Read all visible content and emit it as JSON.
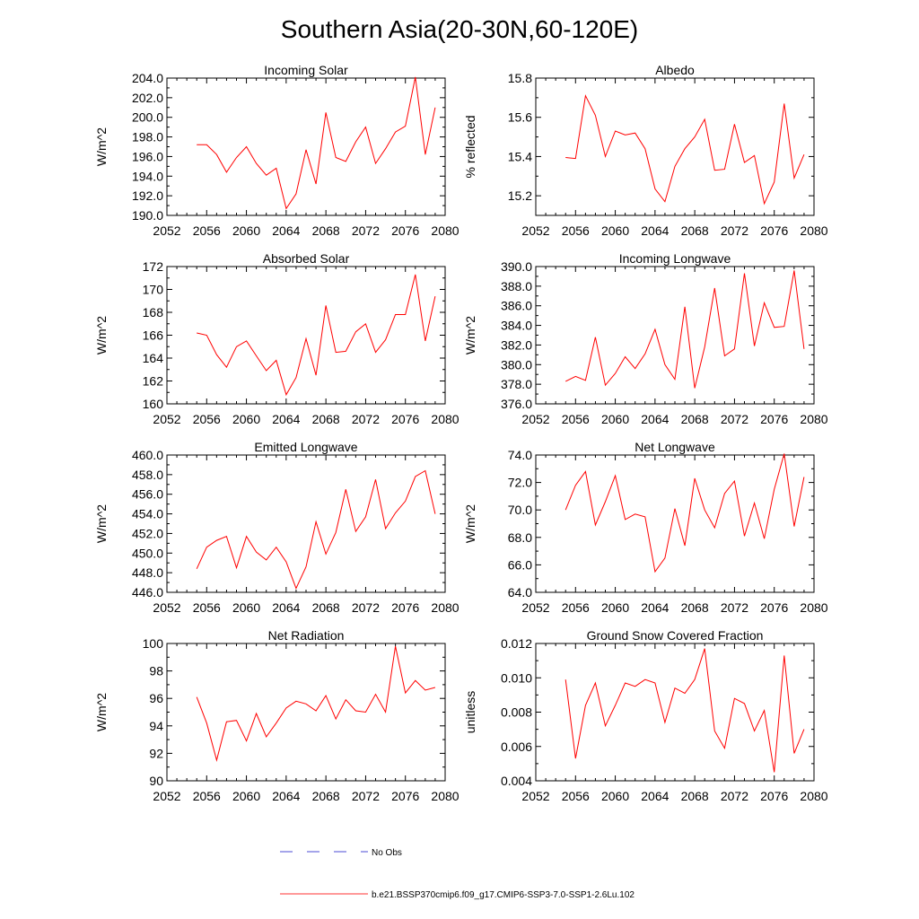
{
  "page_title": "Southern Asia(20-30N,60-120E)",
  "legend": {
    "entries": [
      {
        "label": "No Obs",
        "color": "#4b4bd6",
        "style": "dashed"
      },
      {
        "label": "b.e21.BSSP370cmip6.f09_g17.CMIP6-SSP3-7.0-SSP1-2.6Lu.102",
        "color": "#ff3333",
        "style": "solid"
      }
    ]
  },
  "chart_data": [
    {
      "type": "line",
      "title": "Incoming Solar",
      "ylabel": "W/m^2",
      "xlim": [
        2052,
        2080
      ],
      "xticks": [
        "2052",
        "2056",
        "2060",
        "2064",
        "2068",
        "2072",
        "2076",
        "2080"
      ],
      "ylim": [
        190,
        204
      ],
      "yticks": [
        "190.0",
        "192.0",
        "194.0",
        "196.0",
        "198.0",
        "200.0",
        "202.0",
        "204.0"
      ],
      "series": [
        {
          "color": "#ff0000",
          "x": [
            2055,
            2056,
            2057,
            2058,
            2059,
            2060,
            2061,
            2062,
            2063,
            2064,
            2065,
            2066,
            2067,
            2068,
            2069,
            2070,
            2071,
            2072,
            2073,
            2074,
            2075,
            2076,
            2077,
            2078,
            2079
          ],
          "values": [
            197.2,
            197.2,
            196.2,
            194.4,
            195.9,
            197.0,
            195.3,
            194.1,
            194.8,
            190.7,
            192.2,
            196.7,
            193.2,
            200.5,
            195.9,
            195.5,
            197.5,
            199.0,
            195.3,
            196.8,
            198.5,
            199.1,
            204.1,
            196.2,
            201.0
          ]
        }
      ]
    },
    {
      "type": "line",
      "title": "Albedo",
      "ylabel": "% reflected",
      "xlim": [
        2052,
        2080
      ],
      "xticks": [
        "2052",
        "2056",
        "2060",
        "2064",
        "2068",
        "2072",
        "2076",
        "2080"
      ],
      "ylim": [
        15.1,
        15.8
      ],
      "yticks": [
        "15.2",
        "15.4",
        "15.6",
        "15.8"
      ],
      "series": [
        {
          "color": "#ff0000",
          "x": [
            2055,
            2056,
            2057,
            2058,
            2059,
            2060,
            2061,
            2062,
            2063,
            2064,
            2065,
            2066,
            2067,
            2068,
            2069,
            2070,
            2071,
            2072,
            2073,
            2074,
            2075,
            2076,
            2077,
            2078,
            2079
          ],
          "values": [
            15.395,
            15.39,
            15.71,
            15.61,
            15.4,
            15.53,
            15.51,
            15.52,
            15.44,
            15.235,
            15.17,
            15.35,
            15.44,
            15.5,
            15.59,
            15.33,
            15.335,
            15.565,
            15.37,
            15.405,
            15.16,
            15.27,
            15.67,
            15.29,
            15.41
          ]
        }
      ]
    },
    {
      "type": "line",
      "title": "Absorbed Solar",
      "ylabel": "W/m^2",
      "xlim": [
        2052,
        2080
      ],
      "xticks": [
        "2052",
        "2056",
        "2060",
        "2064",
        "2068",
        "2072",
        "2076",
        "2080"
      ],
      "ylim": [
        160,
        172
      ],
      "yticks": [
        "160",
        "162",
        "164",
        "166",
        "168",
        "170",
        "172"
      ],
      "series": [
        {
          "color": "#ff0000",
          "x": [
            2055,
            2056,
            2057,
            2058,
            2059,
            2060,
            2061,
            2062,
            2063,
            2064,
            2065,
            2066,
            2067,
            2068,
            2069,
            2070,
            2071,
            2072,
            2073,
            2074,
            2075,
            2076,
            2077,
            2078,
            2079
          ],
          "values": [
            166.2,
            166.0,
            164.3,
            163.2,
            165.0,
            165.5,
            164.2,
            162.9,
            163.8,
            160.8,
            162.3,
            165.7,
            162.5,
            168.6,
            164.5,
            164.6,
            166.3,
            167.0,
            164.5,
            165.6,
            167.8,
            167.8,
            171.3,
            165.5,
            169.4
          ]
        }
      ]
    },
    {
      "type": "line",
      "title": "Incoming Longwave",
      "ylabel": "W/m^2",
      "xlim": [
        2052,
        2080
      ],
      "xticks": [
        "2052",
        "2056",
        "2060",
        "2064",
        "2068",
        "2072",
        "2076",
        "2080"
      ],
      "ylim": [
        376,
        390
      ],
      "yticks": [
        "376.0",
        "378.0",
        "380.0",
        "382.0",
        "384.0",
        "386.0",
        "388.0",
        "390.0"
      ],
      "series": [
        {
          "color": "#ff0000",
          "x": [
            2055,
            2056,
            2057,
            2058,
            2059,
            2060,
            2061,
            2062,
            2063,
            2064,
            2065,
            2066,
            2067,
            2068,
            2069,
            2070,
            2071,
            2072,
            2073,
            2074,
            2075,
            2076,
            2077,
            2078,
            2079
          ],
          "values": [
            378.3,
            378.8,
            378.4,
            382.8,
            377.9,
            379.1,
            380.8,
            379.6,
            381.1,
            383.6,
            380.0,
            378.5,
            385.9,
            377.6,
            381.8,
            387.8,
            380.9,
            381.6,
            389.3,
            381.9,
            386.3,
            383.8,
            383.9,
            389.6,
            381.6
          ]
        }
      ]
    },
    {
      "type": "line",
      "title": "Emitted Longwave",
      "ylabel": "W/m^2",
      "xlim": [
        2052,
        2080
      ],
      "xticks": [
        "2052",
        "2056",
        "2060",
        "2064",
        "2068",
        "2072",
        "2076",
        "2080"
      ],
      "ylim": [
        446,
        460
      ],
      "yticks": [
        "446.0",
        "448.0",
        "450.0",
        "452.0",
        "454.0",
        "456.0",
        "458.0",
        "460.0"
      ],
      "series": [
        {
          "color": "#ff0000",
          "x": [
            2055,
            2056,
            2057,
            2058,
            2059,
            2060,
            2061,
            2062,
            2063,
            2064,
            2065,
            2066,
            2067,
            2068,
            2069,
            2070,
            2071,
            2072,
            2073,
            2074,
            2075,
            2076,
            2077,
            2078,
            2079
          ],
          "values": [
            448.4,
            450.6,
            451.3,
            451.7,
            448.5,
            451.7,
            450.1,
            449.3,
            450.6,
            449.1,
            446.4,
            448.6,
            453.2,
            449.9,
            452.1,
            456.5,
            452.2,
            453.7,
            457.5,
            452.5,
            454.1,
            455.3,
            457.8,
            458.4,
            454.0
          ]
        }
      ]
    },
    {
      "type": "line",
      "title": "Net Longwave",
      "ylabel": "W/m^2",
      "xlim": [
        2052,
        2080
      ],
      "xticks": [
        "2052",
        "2056",
        "2060",
        "2064",
        "2068",
        "2072",
        "2076",
        "2080"
      ],
      "ylim": [
        64,
        74
      ],
      "yticks": [
        "64.0",
        "66.0",
        "68.0",
        "70.0",
        "72.0",
        "74.0"
      ],
      "series": [
        {
          "color": "#ff0000",
          "x": [
            2055,
            2056,
            2057,
            2058,
            2059,
            2060,
            2061,
            2062,
            2063,
            2064,
            2065,
            2066,
            2067,
            2068,
            2069,
            2070,
            2071,
            2072,
            2073,
            2074,
            2075,
            2076,
            2077,
            2078,
            2079
          ],
          "values": [
            70.0,
            71.8,
            72.8,
            68.9,
            70.6,
            72.5,
            69.3,
            69.7,
            69.5,
            65.5,
            66.5,
            70.1,
            67.4,
            72.3,
            70.0,
            68.7,
            71.2,
            72.1,
            68.1,
            70.5,
            67.9,
            71.5,
            74.1,
            68.8,
            72.4
          ]
        }
      ]
    },
    {
      "type": "line",
      "title": "Net Radiation",
      "ylabel": "W/m^2",
      "xlim": [
        2052,
        2080
      ],
      "xticks": [
        "2052",
        "2056",
        "2060",
        "2064",
        "2068",
        "2072",
        "2076",
        "2080"
      ],
      "ylim": [
        90,
        100
      ],
      "yticks": [
        "90",
        "92",
        "94",
        "96",
        "98",
        "100"
      ],
      "series": [
        {
          "color": "#ff0000",
          "x": [
            2055,
            2056,
            2057,
            2058,
            2059,
            2060,
            2061,
            2062,
            2063,
            2064,
            2065,
            2066,
            2067,
            2068,
            2069,
            2070,
            2071,
            2072,
            2073,
            2074,
            2075,
            2076,
            2077,
            2078,
            2079
          ],
          "values": [
            96.1,
            94.2,
            91.5,
            94.3,
            94.4,
            92.9,
            94.9,
            93.2,
            94.2,
            95.3,
            95.8,
            95.6,
            95.1,
            96.2,
            94.5,
            95.9,
            95.1,
            95.0,
            96.3,
            95.0,
            99.8,
            96.4,
            97.3,
            96.6,
            96.8
          ]
        }
      ]
    },
    {
      "type": "line",
      "title": "Ground Snow Covered Fraction",
      "ylabel": "unitless",
      "xlim": [
        2052,
        2080
      ],
      "xticks": [
        "2052",
        "2056",
        "2060",
        "2064",
        "2068",
        "2072",
        "2076",
        "2080"
      ],
      "ylim": [
        0.004,
        0.012
      ],
      "yticks": [
        "0.004",
        "0.006",
        "0.008",
        "0.010",
        "0.012"
      ],
      "series": [
        {
          "color": "#ff0000",
          "x": [
            2055,
            2056,
            2057,
            2058,
            2059,
            2060,
            2061,
            2062,
            2063,
            2064,
            2065,
            2066,
            2067,
            2068,
            2069,
            2070,
            2071,
            2072,
            2073,
            2074,
            2075,
            2076,
            2077,
            2078,
            2079
          ],
          "values": [
            0.0099,
            0.0053,
            0.0084,
            0.0097,
            0.0072,
            0.0084,
            0.0097,
            0.0095,
            0.0099,
            0.0097,
            0.0074,
            0.0094,
            0.0091,
            0.0099,
            0.0117,
            0.0069,
            0.0059,
            0.0088,
            0.0085,
            0.0069,
            0.0081,
            0.0045,
            0.0113,
            0.0056,
            0.007
          ]
        }
      ]
    }
  ]
}
